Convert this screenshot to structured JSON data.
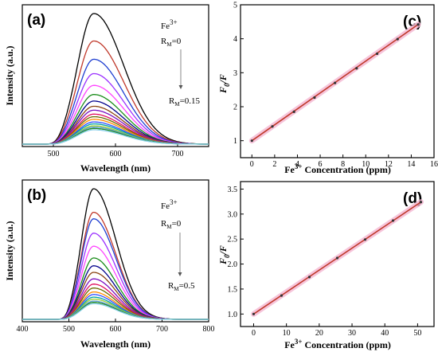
{
  "chart_data": [
    {
      "panel": "(a)",
      "type": "line",
      "xlabel": "Wavelength (nm)",
      "ylabel": "Intensity (a.u.)",
      "xlim": [
        450,
        750
      ],
      "x_ticks": [
        "500",
        "600",
        "700"
      ],
      "annotation": {
        "ion": "Fe",
        "ion_charge": "3+",
        "start": "R",
        "start_sub": "M",
        "start_val": "=0",
        "end": "R",
        "end_sub": "M",
        "end_val": "=0.15"
      },
      "peak_wavelength": 565,
      "series_colors": [
        "#000000",
        "#c0392b",
        "#1f3fd1",
        "#9b30ff",
        "#ff44ff",
        "#1a8c1a",
        "#00008b",
        "#8b4513",
        "#7b0fc0",
        "#e0115f",
        "#6b6b00",
        "#ff8c00",
        "#2f4fff",
        "#00a0a0",
        "#9acd32",
        "#5b9bd5",
        "#228b22",
        "#87ceeb"
      ],
      "series_peak_values": [
        1.0,
        0.79,
        0.65,
        0.54,
        0.45,
        0.38,
        0.33,
        0.29,
        0.26,
        0.23,
        0.21,
        0.19,
        0.17,
        0.155,
        0.14,
        0.13,
        0.12,
        0.11
      ]
    },
    {
      "panel": "(b)",
      "type": "line",
      "xlabel": "Wavelength (nm)",
      "ylabel": "Intensity (a.u.)",
      "xlim": [
        400,
        800
      ],
      "x_ticks": [
        "400",
        "500",
        "600",
        "700",
        "800"
      ],
      "annotation": {
        "ion": "Fe",
        "ion_charge": "3+",
        "start": "R",
        "start_sub": "M",
        "start_val": "=0",
        "end": "R",
        "end_sub": "M",
        "end_val": "=0.5"
      },
      "peak_wavelength": 553,
      "series_colors": [
        "#000000",
        "#c0392b",
        "#1f3fd1",
        "#9b30ff",
        "#ff44ff",
        "#1a8c1a",
        "#00008b",
        "#8b4513",
        "#7b0fc0",
        "#e0115f",
        "#6b6b00",
        "#ff8c00",
        "#2f4fff",
        "#00a0a0",
        "#9acd32",
        "#5b9bd5",
        "#228b22",
        "#87ceeb"
      ],
      "series_peak_values": [
        1.0,
        0.82,
        0.77,
        0.66,
        0.56,
        0.47,
        0.41,
        0.36,
        0.31,
        0.27,
        0.24,
        0.21,
        0.19,
        0.17,
        0.155,
        0.14,
        0.13,
        0.12
      ]
    },
    {
      "panel": "(c)",
      "type": "scatter",
      "xlabel": "Fe",
      "xlabel_sup": "3+",
      "xlabel_rest": " Concentration (ppm)",
      "ylabel": "F",
      "ylabel_sub": "0",
      "ylabel_rest": "/F",
      "xlim": [
        -1,
        16
      ],
      "ylim": [
        0.5,
        5
      ],
      "x_ticks": [
        "0",
        "2",
        "4",
        "6",
        "8",
        "10",
        "12",
        "14",
        "16"
      ],
      "y_ticks": [
        "1",
        "2",
        "3",
        "4",
        "5"
      ],
      "x": [
        0,
        1.8,
        3.7,
        5.5,
        7.3,
        9.2,
        11.0,
        12.8,
        14.6
      ],
      "y": [
        1.0,
        1.42,
        1.85,
        2.27,
        2.7,
        3.13,
        3.56,
        3.99,
        4.42
      ],
      "fit_line": {
        "x": [
          0,
          14.6
        ],
        "y": [
          1.0,
          4.42
        ],
        "color": "#c0392b"
      }
    },
    {
      "panel": "(d)",
      "type": "scatter",
      "xlabel": "Fe",
      "xlabel_sup": "3+",
      "xlabel_rest": " Concentration (ppm)",
      "ylabel": "F",
      "ylabel_sub": "0",
      "ylabel_rest": "/F",
      "xlim": [
        -4,
        55
      ],
      "ylim": [
        0.75,
        3.65
      ],
      "x_ticks": [
        "0",
        "10",
        "20",
        "30",
        "40",
        "50"
      ],
      "y_ticks": [
        "1.0",
        "1.5",
        "2.0",
        "2.5",
        "3.0",
        "3.5"
      ],
      "x": [
        0,
        8.5,
        17,
        25.5,
        34,
        42.5,
        51
      ],
      "y": [
        1.0,
        1.37,
        1.74,
        2.12,
        2.49,
        2.87,
        3.24
      ],
      "fit_line": {
        "x": [
          0,
          51
        ],
        "y": [
          1.0,
          3.24
        ],
        "color": "#c0392b"
      }
    }
  ]
}
